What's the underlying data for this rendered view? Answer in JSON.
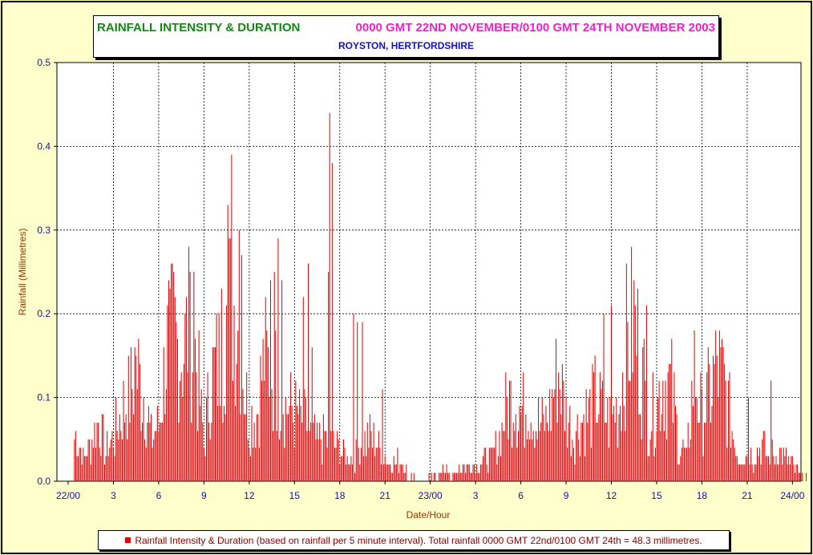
{
  "chart_data": {
    "type": "bar",
    "title": "RAINFALL INTENSITY & DURATION",
    "period": "0000 GMT 22ND NOVEMBER/0100 GMT 24TH NOVEMBER 2003",
    "subtitle": "ROYSTON, HERTFORDSHIRE",
    "xlabel": "Date/Hour",
    "ylabel": "Rainfall (Millimetres)",
    "ylim": [
      0,
      0.5
    ],
    "y_ticks": [
      "0.0",
      "0.1",
      "0.2",
      "0.3",
      "0.4",
      "0.5"
    ],
    "x_unit_hours": [
      0,
      49
    ],
    "x_ticks": [
      {
        "hour": 0,
        "label": "22/00"
      },
      {
        "hour": 3,
        "label": "3"
      },
      {
        "hour": 6,
        "label": "6"
      },
      {
        "hour": 9,
        "label": "9"
      },
      {
        "hour": 12,
        "label": "12"
      },
      {
        "hour": 15,
        "label": "15"
      },
      {
        "hour": 18,
        "label": "18"
      },
      {
        "hour": 21,
        "label": "21"
      },
      {
        "hour": 24,
        "label": "23/00"
      },
      {
        "hour": 27,
        "label": "3"
      },
      {
        "hour": 30,
        "label": "6"
      },
      {
        "hour": 33,
        "label": "9"
      },
      {
        "hour": 36,
        "label": "12"
      },
      {
        "hour": 39,
        "label": "15"
      },
      {
        "hour": 42,
        "label": "18"
      },
      {
        "hour": 45,
        "label": "21"
      },
      {
        "hour": 48,
        "label": "24/00"
      }
    ],
    "grid": true,
    "interval_minutes": 5,
    "series": [
      {
        "name": "Rainfall Intensity & Duration (based on rainfall per 5 minute interval). Total rainfall 0000 GMT 22nd/0100 GMT 24th = 48.3 millimetres.",
        "color": "#dd0000",
        "anchors": [
          [
            0.5,
            0.06
          ],
          [
            1.0,
            0.03
          ],
          [
            1.5,
            0.05
          ],
          [
            2.0,
            0.08
          ],
          [
            2.5,
            0.04
          ],
          [
            3.0,
            0.06
          ],
          [
            3.5,
            0.09
          ],
          [
            4.0,
            0.11
          ],
          [
            4.5,
            0.15
          ],
          [
            5.0,
            0.12
          ],
          [
            5.5,
            0.06
          ],
          [
            6.0,
            0.07
          ],
          [
            6.5,
            0.17
          ],
          [
            7.0,
            0.19
          ],
          [
            7.5,
            0.17
          ],
          [
            8.0,
            0.2
          ],
          [
            8.5,
            0.16
          ],
          [
            9.0,
            0.05
          ],
          [
            9.5,
            0.14
          ],
          [
            10.0,
            0.16
          ],
          [
            10.5,
            0.22
          ],
          [
            11.0,
            0.24
          ],
          [
            11.5,
            0.17
          ],
          [
            12.0,
            0.08
          ],
          [
            12.5,
            0.09
          ],
          [
            13.0,
            0.16
          ],
          [
            13.5,
            0.15
          ],
          [
            14.0,
            0.12
          ],
          [
            14.5,
            0.1
          ],
          [
            15.0,
            0.09
          ],
          [
            15.5,
            0.08
          ],
          [
            16.0,
            0.07
          ],
          [
            16.5,
            0.05
          ],
          [
            17.0,
            0.06
          ],
          [
            17.5,
            0.05
          ],
          [
            18.0,
            0.04
          ],
          [
            18.5,
            0.03
          ],
          [
            19.0,
            0.03
          ],
          [
            19.5,
            0.05
          ],
          [
            20.0,
            0.06
          ],
          [
            20.5,
            0.05
          ],
          [
            21.0,
            0.03
          ],
          [
            21.5,
            0.02
          ],
          [
            22.0,
            0.03
          ],
          [
            22.5,
            0.01
          ],
          [
            23.0,
            0.005
          ],
          [
            23.5,
            0.0
          ],
          [
            24.0,
            0.005
          ],
          [
            24.5,
            0.01
          ],
          [
            25.0,
            0.015
          ],
          [
            25.5,
            0.01
          ],
          [
            26.0,
            0.02
          ],
          [
            26.5,
            0.02
          ],
          [
            27.0,
            0.02
          ],
          [
            27.5,
            0.03
          ],
          [
            28.0,
            0.03
          ],
          [
            28.5,
            0.05
          ],
          [
            29.0,
            0.09
          ],
          [
            29.5,
            0.12
          ],
          [
            30.0,
            0.09
          ],
          [
            30.5,
            0.11
          ],
          [
            31.0,
            0.08
          ],
          [
            31.5,
            0.07
          ],
          [
            32.0,
            0.1
          ],
          [
            32.5,
            0.15
          ],
          [
            33.0,
            0.09
          ],
          [
            33.5,
            0.06
          ],
          [
            34.0,
            0.08
          ],
          [
            34.5,
            0.09
          ],
          [
            35.0,
            0.11
          ],
          [
            35.5,
            0.09
          ],
          [
            36.0,
            0.08
          ],
          [
            36.5,
            0.1
          ],
          [
            37.0,
            0.18
          ],
          [
            37.5,
            0.21
          ],
          [
            38.0,
            0.15
          ],
          [
            38.5,
            0.08
          ],
          [
            39.0,
            0.1
          ],
          [
            39.5,
            0.14
          ],
          [
            40.0,
            0.12
          ],
          [
            40.5,
            0.05
          ],
          [
            41.0,
            0.03
          ],
          [
            41.5,
            0.15
          ],
          [
            42.0,
            0.08
          ],
          [
            42.5,
            0.12
          ],
          [
            43.0,
            0.15
          ],
          [
            43.5,
            0.13
          ],
          [
            44.0,
            0.07
          ],
          [
            44.5,
            0.03
          ],
          [
            45.0,
            0.04
          ],
          [
            45.5,
            0.03
          ],
          [
            46.0,
            0.05
          ],
          [
            46.5,
            0.03
          ],
          [
            47.0,
            0.04
          ],
          [
            47.5,
            0.03
          ],
          [
            48.0,
            0.02
          ],
          [
            48.5,
            0.01
          ],
          [
            49.0,
            0.01
          ]
        ],
        "peaks": [
          [
            10.6,
            0.33
          ],
          [
            10.8,
            0.39
          ],
          [
            11.3,
            0.3
          ],
          [
            11.5,
            0.27
          ],
          [
            10.2,
            0.23
          ],
          [
            17.35,
            0.44
          ],
          [
            17.5,
            0.38
          ],
          [
            17.25,
            0.25
          ],
          [
            13.9,
            0.29
          ],
          [
            13.7,
            0.25
          ],
          [
            14.2,
            0.24
          ],
          [
            13.4,
            0.24
          ],
          [
            15.9,
            0.26
          ],
          [
            15.55,
            0.22
          ],
          [
            8.05,
            0.25
          ],
          [
            8.3,
            0.25
          ],
          [
            6.7,
            0.24
          ],
          [
            36.0,
            0.21
          ],
          [
            35.5,
            0.2
          ],
          [
            38.3,
            0.21
          ],
          [
            19.5,
            0.19
          ],
          [
            18.9,
            0.2
          ],
          [
            19.2,
            0.19
          ],
          [
            4.4,
            0.16
          ],
          [
            16.2,
            0.16
          ],
          [
            20.8,
            0.11
          ],
          [
            46.6,
            0.12
          ],
          [
            45.1,
            0.1
          ],
          [
            48.5,
            0.01
          ]
        ]
      }
    ],
    "legend_position": "bottom"
  }
}
